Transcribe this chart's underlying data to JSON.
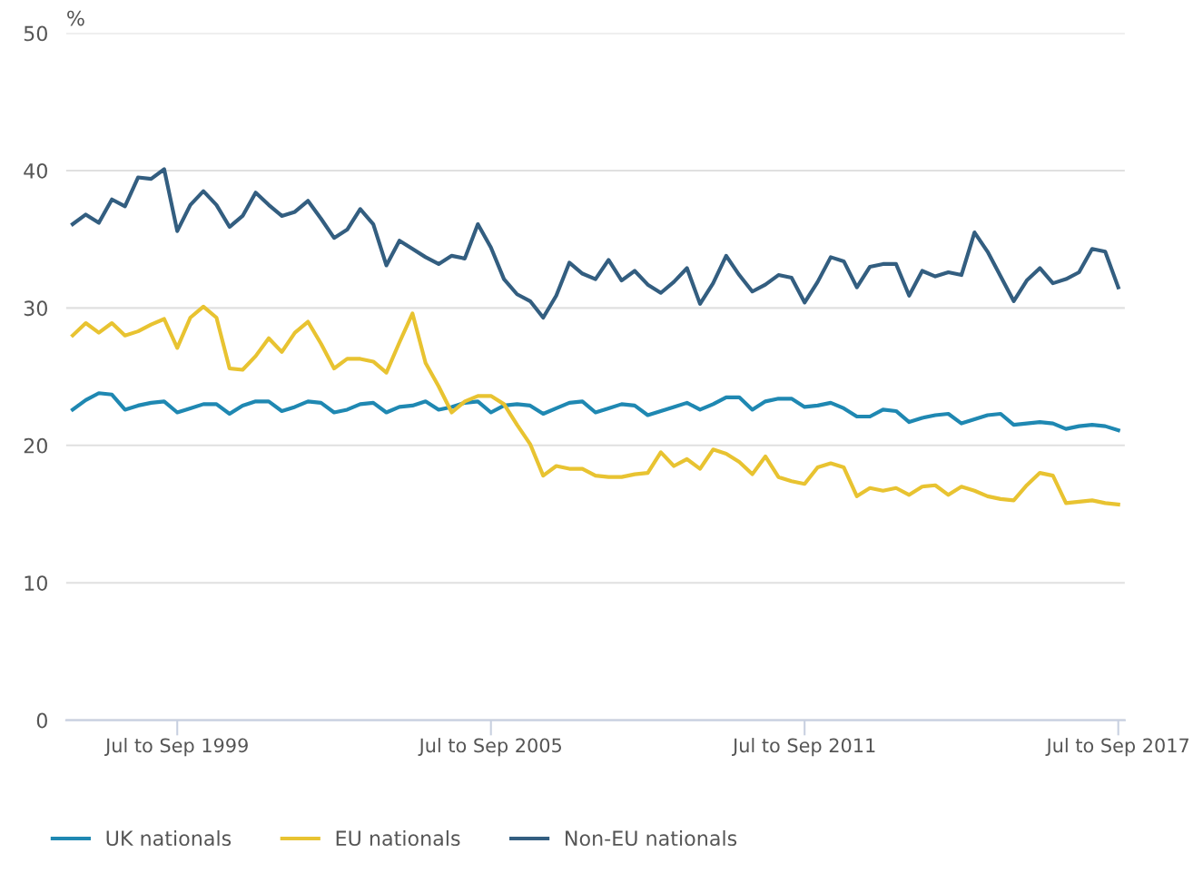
{
  "chart_data": {
    "type": "line",
    "ylabel": "%",
    "categories": [
      null,
      null,
      null,
      null,
      null,
      null,
      null,
      null,
      "Jul to Sep 1999",
      null,
      null,
      null,
      null,
      null,
      null,
      null,
      null,
      null,
      null,
      null,
      null,
      null,
      null,
      null,
      null,
      null,
      null,
      null,
      null,
      null,
      null,
      null,
      "Jul to Sep 2005",
      null,
      null,
      null,
      null,
      null,
      null,
      null,
      null,
      null,
      null,
      null,
      null,
      null,
      null,
      null,
      null,
      null,
      null,
      null,
      null,
      null,
      null,
      null,
      "Jul to Sep 2011",
      null,
      null,
      null,
      null,
      null,
      null,
      null,
      null,
      null,
      null,
      null,
      null,
      null,
      null,
      null,
      null,
      null,
      null,
      null,
      null,
      null,
      null,
      null,
      "Jul to Sep 2017"
    ],
    "series": [
      {
        "name": "UK nationals",
        "color": "#1f88b2",
        "values": [
          22.6,
          23.3,
          23.8,
          23.7,
          22.6,
          22.9,
          23.1,
          23.2,
          22.4,
          22.7,
          23.0,
          23.0,
          22.3,
          22.9,
          23.2,
          23.2,
          22.5,
          22.8,
          23.2,
          23.1,
          22.4,
          22.6,
          23.0,
          23.1,
          22.4,
          22.8,
          22.9,
          23.2,
          22.6,
          22.8,
          23.1,
          23.2,
          22.4,
          22.9,
          23.0,
          22.9,
          22.3,
          22.7,
          23.1,
          23.2,
          22.4,
          22.7,
          23.0,
          22.9,
          22.2,
          22.5,
          22.8,
          23.1,
          22.6,
          23.0,
          23.5,
          23.5,
          22.6,
          23.2,
          23.4,
          23.4,
          22.8,
          22.9,
          23.1,
          22.7,
          22.1,
          22.1,
          22.6,
          22.5,
          21.7,
          22.0,
          22.2,
          22.3,
          21.6,
          21.9,
          22.2,
          22.3,
          21.5,
          21.6,
          21.7,
          21.6,
          21.2,
          21.4,
          21.5,
          21.4,
          21.1
        ]
      },
      {
        "name": "EU nationals",
        "color": "#e8c331",
        "values": [
          28.0,
          28.9,
          28.2,
          28.9,
          28.0,
          28.3,
          28.8,
          29.2,
          27.1,
          29.3,
          30.1,
          29.3,
          25.6,
          25.5,
          26.5,
          27.8,
          26.8,
          28.2,
          29.0,
          27.4,
          25.6,
          26.3,
          26.3,
          26.1,
          25.3,
          27.5,
          29.6,
          26.0,
          24.3,
          22.4,
          23.2,
          23.6,
          23.6,
          23.0,
          21.5,
          20.1,
          17.8,
          18.5,
          18.3,
          18.3,
          17.8,
          17.7,
          17.7,
          17.9,
          18.0,
          19.5,
          18.5,
          19.0,
          18.3,
          19.7,
          19.4,
          18.8,
          17.9,
          19.2,
          17.7,
          17.4,
          17.2,
          18.4,
          18.7,
          18.4,
          16.3,
          16.9,
          16.7,
          16.9,
          16.4,
          17.0,
          17.1,
          16.4,
          17.0,
          16.7,
          16.3,
          16.1,
          16.0,
          17.1,
          18.0,
          17.8,
          15.8,
          15.9,
          16.0,
          15.8,
          15.7
        ]
      },
      {
        "name": "Non-EU nationals",
        "color": "#335e80",
        "values": [
          36.1,
          36.8,
          36.2,
          37.9,
          37.4,
          39.5,
          39.4,
          40.1,
          35.6,
          37.5,
          38.5,
          37.5,
          35.9,
          36.7,
          38.4,
          37.5,
          36.7,
          37.0,
          37.8,
          36.5,
          35.1,
          35.7,
          37.2,
          36.1,
          33.1,
          34.9,
          34.3,
          33.7,
          33.2,
          33.8,
          33.6,
          36.1,
          34.4,
          32.1,
          31.0,
          30.5,
          29.3,
          30.9,
          33.3,
          32.5,
          32.1,
          33.5,
          32.0,
          32.7,
          31.7,
          31.1,
          31.9,
          32.9,
          30.3,
          31.8,
          33.8,
          32.4,
          31.2,
          31.7,
          32.4,
          32.2,
          30.4,
          31.9,
          33.7,
          33.4,
          31.5,
          33.0,
          33.2,
          33.2,
          30.9,
          32.7,
          32.3,
          32.6,
          32.4,
          35.5,
          34.1,
          32.3,
          30.5,
          32.0,
          32.9,
          31.8,
          32.1,
          32.6,
          34.3,
          34.1,
          31.5
        ]
      }
    ],
    "ylim": [
      0,
      50
    ],
    "yticks": [
      0,
      10,
      20,
      30,
      40,
      50
    ],
    "grid": "y",
    "legend": "bottom",
    "marker": "none",
    "line_style": "solid"
  }
}
